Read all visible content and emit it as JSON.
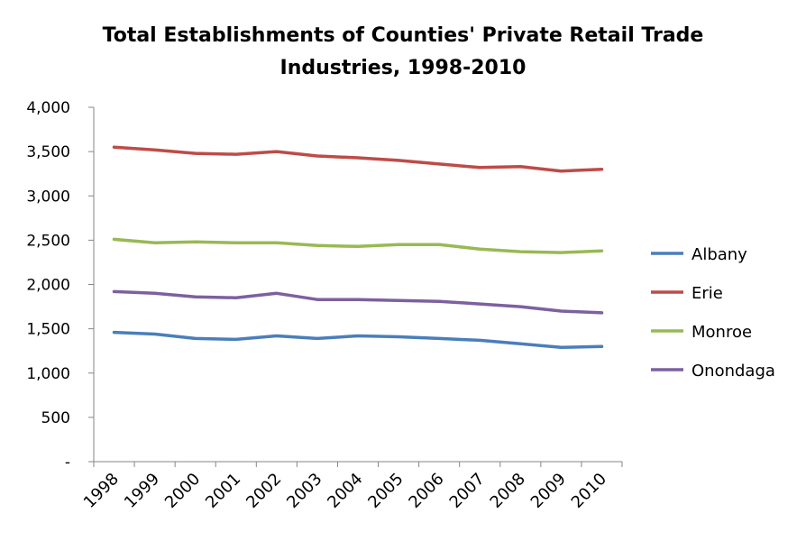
{
  "chart_data": {
    "type": "line",
    "title": "Total Establishments of Counties' Private Retail Trade Industries, 1998-2010",
    "title_lines": [
      "Total Establishments of Counties' Private Retail Trade",
      "Industries, 1998-2010"
    ],
    "xlabel": "",
    "ylabel": "",
    "x": [
      "1998",
      "1999",
      "2000",
      "2001",
      "2002",
      "2003",
      "2004",
      "2005",
      "2006",
      "2007",
      "2008",
      "2009",
      "2010"
    ],
    "ylim": [
      0,
      4000
    ],
    "yticks": [
      0,
      500,
      1000,
      1500,
      2000,
      2500,
      3000,
      3500,
      4000
    ],
    "ytick_labels": [
      "-",
      "500",
      "1,000",
      "1,500",
      "2,000",
      "2,500",
      "3,000",
      "3,500",
      "4,000"
    ],
    "grid": false,
    "legend_position": "right",
    "series": [
      {
        "name": "Albany",
        "color": "#4a7ebb",
        "values": [
          1460,
          1440,
          1390,
          1380,
          1420,
          1390,
          1420,
          1410,
          1390,
          1370,
          1330,
          1290,
          1300
        ]
      },
      {
        "name": "Erie",
        "color": "#be4b48",
        "values": [
          3550,
          3520,
          3480,
          3470,
          3500,
          3450,
          3430,
          3400,
          3360,
          3320,
          3330,
          3280,
          3300
        ]
      },
      {
        "name": "Monroe",
        "color": "#98b954",
        "values": [
          2510,
          2470,
          2480,
          2470,
          2470,
          2440,
          2430,
          2450,
          2450,
          2400,
          2370,
          2360,
          2380
        ]
      },
      {
        "name": "Onondaga",
        "color": "#7d60a0",
        "values": [
          1920,
          1900,
          1860,
          1850,
          1900,
          1830,
          1830,
          1820,
          1810,
          1780,
          1750,
          1700,
          1680
        ]
      }
    ]
  }
}
